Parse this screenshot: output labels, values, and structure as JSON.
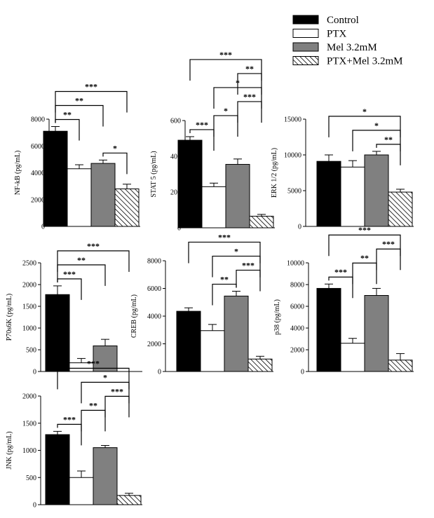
{
  "legend": [
    {
      "label": "Control",
      "fill": "#000000",
      "pattern": "solid"
    },
    {
      "label": "PTX",
      "fill": "#ffffff",
      "pattern": "solid"
    },
    {
      "label": "Mel 3.2mM",
      "fill": "#808080",
      "pattern": "solid"
    },
    {
      "label": "PTX+Mel 3.2mM",
      "fill": "#ffffff",
      "pattern": "hatch"
    }
  ],
  "chart_data": [
    {
      "type": "bar",
      "ylabel": "NF-kB (pg/mL)",
      "categories": [
        "Control",
        "PTX",
        "Mel 3.2mM",
        "PTX+Mel 3.2mM"
      ],
      "values": [
        7100,
        4300,
        4700,
        2800
      ],
      "errors": [
        350,
        300,
        250,
        350
      ],
      "ylim": [
        0,
        8000
      ],
      "yticks": [
        "0",
        "2000",
        "4000",
        "6000",
        "8000"
      ],
      "significance": [
        {
          "from": 0,
          "to": 1,
          "label": "**"
        },
        {
          "from": 2,
          "to": 3,
          "label": "*"
        },
        {
          "from": 0,
          "to": 2,
          "label": "**"
        },
        {
          "from": 0,
          "to": 3,
          "label": "***"
        }
      ]
    },
    {
      "type": "bar",
      "ylabel": "STAT 5 (pg/mL)",
      "categories": [
        "Control",
        "PTX",
        "Mel 3.2mM",
        "PTX+Mel 3.2mM"
      ],
      "values": [
        490,
        230,
        355,
        65
      ],
      "errors": [
        20,
        20,
        30,
        10
      ],
      "ylim": [
        0,
        600
      ],
      "yticks": [
        "0",
        "200",
        "400",
        "600"
      ],
      "significance": [
        {
          "from": 0,
          "to": 1,
          "label": "***"
        },
        {
          "from": 1,
          "to": 2,
          "label": "*"
        },
        {
          "from": 2,
          "to": 3,
          "label": "***"
        },
        {
          "from": 1,
          "to": 3,
          "label": "*"
        },
        {
          "from": 2,
          "to": 3,
          "label": "**"
        },
        {
          "from": 0,
          "to": 3,
          "label": "***"
        }
      ]
    },
    {
      "type": "bar",
      "ylabel": "ERK 1/2 (pg/mL)",
      "categories": [
        "Control",
        "PTX",
        "Mel 3.2mM",
        "PTX+Mel 3.2mM"
      ],
      "values": [
        9100,
        8300,
        10000,
        4800
      ],
      "errors": [
        900,
        900,
        500,
        400
      ],
      "ylim": [
        0,
        15000
      ],
      "yticks": [
        "0",
        "5000",
        "10000",
        "15000"
      ],
      "significance": [
        {
          "from": 2,
          "to": 3,
          "label": "**"
        },
        {
          "from": 1,
          "to": 3,
          "label": "*"
        },
        {
          "from": 0,
          "to": 3,
          "label": "*"
        }
      ]
    },
    {
      "type": "bar",
      "ylabel": "P70s6K (pg/mL)",
      "categories": [
        "Control",
        "PTX",
        "Mel 3.2mM",
        "PTX+Mel 3.2mM"
      ],
      "values": [
        1770,
        200,
        590,
        0
      ],
      "errors": [
        200,
        100,
        150,
        0
      ],
      "ylim": [
        0,
        2500
      ],
      "yticks": [
        "0",
        "500",
        "1000",
        "1500",
        "2000",
        "2500"
      ],
      "significance": [
        {
          "from": 0,
          "to": 1,
          "label": "***"
        },
        {
          "from": 0,
          "to": 2,
          "label": "**"
        },
        {
          "from": 0,
          "to": 3,
          "label": "***"
        }
      ]
    },
    {
      "type": "bar",
      "ylabel": "CREB (pg/mL)",
      "categories": [
        "Control",
        "PTX",
        "Mel 3.2mM",
        "PTX+Mel 3.2mM"
      ],
      "values": [
        4350,
        2950,
        5450,
        900
      ],
      "errors": [
        250,
        450,
        350,
        200
      ],
      "ylim": [
        0,
        8000
      ],
      "yticks": [
        "0",
        "2000",
        "4000",
        "6000",
        "8000"
      ],
      "significance": [
        {
          "from": 1,
          "to": 2,
          "label": "**"
        },
        {
          "from": 2,
          "to": 3,
          "label": "***"
        },
        {
          "from": 1,
          "to": 3,
          "label": "*"
        },
        {
          "from": 0,
          "to": 3,
          "label": "***"
        }
      ]
    },
    {
      "type": "bar",
      "ylabel": "p38 (pg/mL)",
      "categories": [
        "Control",
        "PTX",
        "Mel 3.2mM",
        "PTX+Mel 3.2mM"
      ],
      "values": [
        7650,
        2600,
        7000,
        1050
      ],
      "errors": [
        400,
        450,
        650,
        600
      ],
      "ylim": [
        0,
        10000
      ],
      "yticks": [
        "0",
        "2000",
        "4000",
        "6000",
        "8000",
        "10000"
      ],
      "significance": [
        {
          "from": 0,
          "to": 1,
          "label": "***"
        },
        {
          "from": 1,
          "to": 2,
          "label": "**"
        },
        {
          "from": 2,
          "to": 3,
          "label": "***"
        },
        {
          "from": 0,
          "to": 3,
          "label": "***"
        }
      ]
    },
    {
      "type": "bar",
      "ylabel": "JNK (pg/mL)",
      "categories": [
        "Control",
        "PTX",
        "Mel 3.2mM",
        "PTX+Mel 3.2mM"
      ],
      "values": [
        1290,
        500,
        1050,
        170
      ],
      "errors": [
        60,
        120,
        40,
        40
      ],
      "ylim": [
        0,
        2000
      ],
      "yticks": [
        "0",
        "500",
        "1000",
        "1500",
        "2000"
      ],
      "significance": [
        {
          "from": 0,
          "to": 1,
          "label": "***"
        },
        {
          "from": 1,
          "to": 2,
          "label": "**"
        },
        {
          "from": 2,
          "to": 3,
          "label": "***"
        },
        {
          "from": 1,
          "to": 3,
          "label": "*"
        },
        {
          "from": 0,
          "to": 3,
          "label": "***"
        }
      ]
    }
  ]
}
